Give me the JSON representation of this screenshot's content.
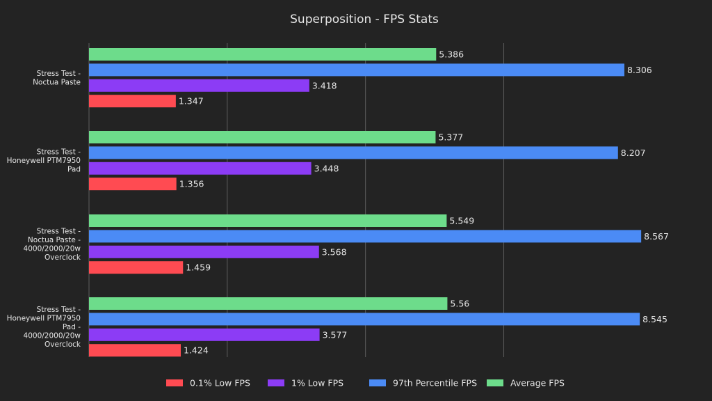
{
  "chart_data": {
    "type": "bar",
    "orientation": "horizontal",
    "title": "Superposition - FPS Stats",
    "xlabel": "",
    "ylabel": "",
    "xlim": [
      0,
      8.8
    ],
    "grid": true,
    "legend_position": "bottom-center",
    "categories": [
      [
        "Stress Test -",
        "Noctua Paste"
      ],
      [
        "Stress Test -",
        "Honeywell PTM7950",
        "Pad"
      ],
      [
        "Stress Test -",
        "Noctua Paste -",
        "4000/2000/20w",
        "Overclock"
      ],
      [
        "Stress Test -",
        "Honeywell PTM7950",
        "Pad -",
        "4000/2000/20w",
        "Overclock"
      ]
    ],
    "series": [
      {
        "name": "Average FPS",
        "color": "#6ddc8b",
        "values": [
          5.386,
          5.377,
          5.549,
          5.56
        ],
        "labels": [
          "5.386",
          "5.377",
          "5.549",
          "5.56"
        ]
      },
      {
        "name": "97th Percentile FPS",
        "color": "#4b8bf5",
        "values": [
          8.306,
          8.207,
          8.567,
          8.545
        ],
        "labels": [
          "8.306",
          "8.207",
          "8.567",
          "8.545"
        ]
      },
      {
        "name": "1% Low FPS",
        "color": "#8c3cf5",
        "values": [
          3.418,
          3.448,
          3.568,
          3.577
        ],
        "labels": [
          "3.418",
          "3.448",
          "3.568",
          "3.577"
        ]
      },
      {
        "name": "0.1% Low FPS",
        "color": "#ff4b52",
        "values": [
          1.347,
          1.356,
          1.459,
          1.424
        ],
        "labels": [
          "1.347",
          "1.356",
          "1.459",
          "1.424"
        ]
      }
    ],
    "legend_order": [
      "0.1% Low FPS",
      "1% Low FPS",
      "97th Percentile FPS",
      "Average FPS"
    ]
  }
}
